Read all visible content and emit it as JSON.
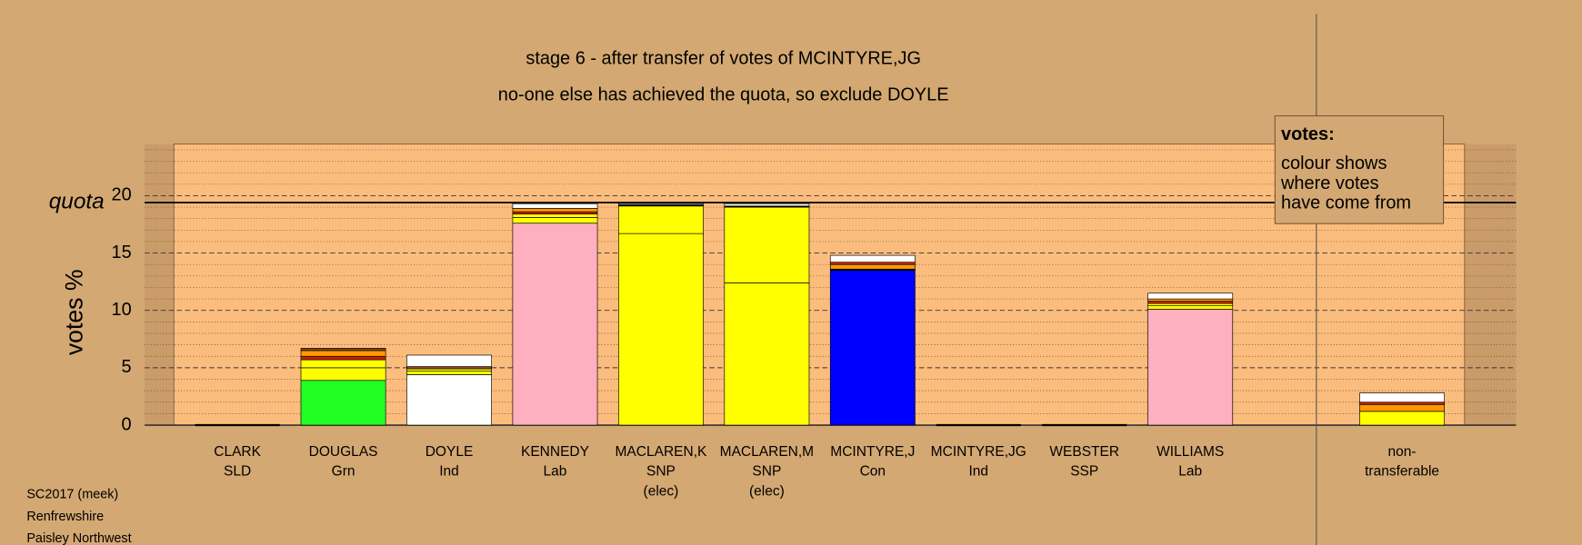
{
  "chart_data": {
    "type": "stacked-bar",
    "title": "stage 6 - after transfer of votes of MCINTYRE,JG",
    "subtitle": "no-one else has achieved the quota, so exclude DOYLE",
    "ylabel": "votes %",
    "quota_label": "quota",
    "quota": 19.4,
    "ylim": [
      0,
      24.5
    ],
    "yticks": [
      0,
      5,
      10,
      15,
      20
    ],
    "minor_yticks": [
      1,
      2,
      3,
      4,
      6,
      7,
      8,
      9,
      11,
      12,
      13,
      14,
      16,
      17,
      18,
      19,
      21,
      22,
      23,
      24
    ],
    "legend": {
      "title": "votes:",
      "lines": [
        "colour shows",
        "where votes",
        "have come from"
      ]
    },
    "footer": [
      "SC2017 (meek)",
      "Renfrewshire",
      "Paisley Northwest"
    ],
    "bars": [
      {
        "label": [
          "CLARK",
          "SLD"
        ],
        "segments": [
          {
            "value": 0,
            "color": "#000000"
          }
        ]
      },
      {
        "label": [
          "DOUGLAS",
          "Grn"
        ],
        "segments": [
          {
            "value": 3.9,
            "color": "#22ff22"
          },
          {
            "value": 1.1,
            "color": "#ffff00"
          },
          {
            "value": 0.7,
            "color": "#ffff00"
          },
          {
            "value": 0.3,
            "color": "#cc2200"
          },
          {
            "value": 0.5,
            "color": "#ff9900"
          },
          {
            "value": 0.2,
            "color": "#8b4513"
          }
        ]
      },
      {
        "label": [
          "DOYLE",
          "Ind"
        ],
        "segments": [
          {
            "value": 4.4,
            "color": "#ffffff"
          },
          {
            "value": 0.3,
            "color": "#ffff00"
          },
          {
            "value": 0.2,
            "color": "#ffff00"
          },
          {
            "value": 0.2,
            "color": "#8b4513"
          },
          {
            "value": 1.0,
            "color": "#ffffff"
          }
        ]
      },
      {
        "label": [
          "KENNEDY",
          "Lab"
        ],
        "segments": [
          {
            "value": 17.6,
            "color": "#ffb0c0"
          },
          {
            "value": 0.5,
            "color": "#ffff00"
          },
          {
            "value": 0.3,
            "color": "#ffff00"
          },
          {
            "value": 0.2,
            "color": "#cc2200"
          },
          {
            "value": 0.3,
            "color": "#ff9900"
          },
          {
            "value": 0.4,
            "color": "#ffffff"
          }
        ]
      },
      {
        "label": [
          "MACLAREN,K",
          "SNP",
          "(elec)"
        ],
        "segments": [
          {
            "value": 16.7,
            "color": "#ffff00"
          },
          {
            "value": 2.4,
            "color": "#ffff00"
          },
          {
            "value": 0.1,
            "color": "#000000"
          },
          {
            "value": 0.1,
            "color": "#ffffff"
          }
        ]
      },
      {
        "label": [
          "MACLAREN,M",
          "SNP",
          "(elec)"
        ],
        "segments": [
          {
            "value": 12.4,
            "color": "#ffff00"
          },
          {
            "value": 6.6,
            "color": "#ffff00"
          },
          {
            "value": 0.1,
            "color": "#000000"
          },
          {
            "value": 0.2,
            "color": "#ffffff"
          }
        ]
      },
      {
        "label": [
          "MCINTYRE,J",
          "Con"
        ],
        "segments": [
          {
            "value": 13.5,
            "color": "#0000ff"
          },
          {
            "value": 0.1,
            "color": "#000000"
          },
          {
            "value": 0.4,
            "color": "#ff9900"
          },
          {
            "value": 0.2,
            "color": "#cc2200"
          },
          {
            "value": 0.6,
            "color": "#ffffff"
          }
        ]
      },
      {
        "label": [
          "MCINTYRE,JG",
          "Ind"
        ],
        "segments": [
          {
            "value": 0,
            "color": "#000000"
          }
        ]
      },
      {
        "label": [
          "WEBSTER",
          "SSP"
        ],
        "segments": [
          {
            "value": 0,
            "color": "#000000"
          }
        ]
      },
      {
        "label": [
          "WILLIAMS",
          "Lab"
        ],
        "segments": [
          {
            "value": 10.1,
            "color": "#ffb0c0"
          },
          {
            "value": 0.3,
            "color": "#ffff00"
          },
          {
            "value": 0.2,
            "color": "#ffff00"
          },
          {
            "value": 0.2,
            "color": "#cc2200"
          },
          {
            "value": 0.2,
            "color": "#ff9900"
          },
          {
            "value": 0.5,
            "color": "#ffffff"
          }
        ]
      },
      {
        "label": [
          "non-",
          "transferable"
        ],
        "segments": [
          {
            "value": 1.2,
            "color": "#ffff00"
          },
          {
            "value": 0.6,
            "color": "#ff9900"
          },
          {
            "value": 0.2,
            "color": "#cc2200"
          },
          {
            "value": 0.8,
            "color": "#ffffff"
          }
        ]
      }
    ]
  }
}
